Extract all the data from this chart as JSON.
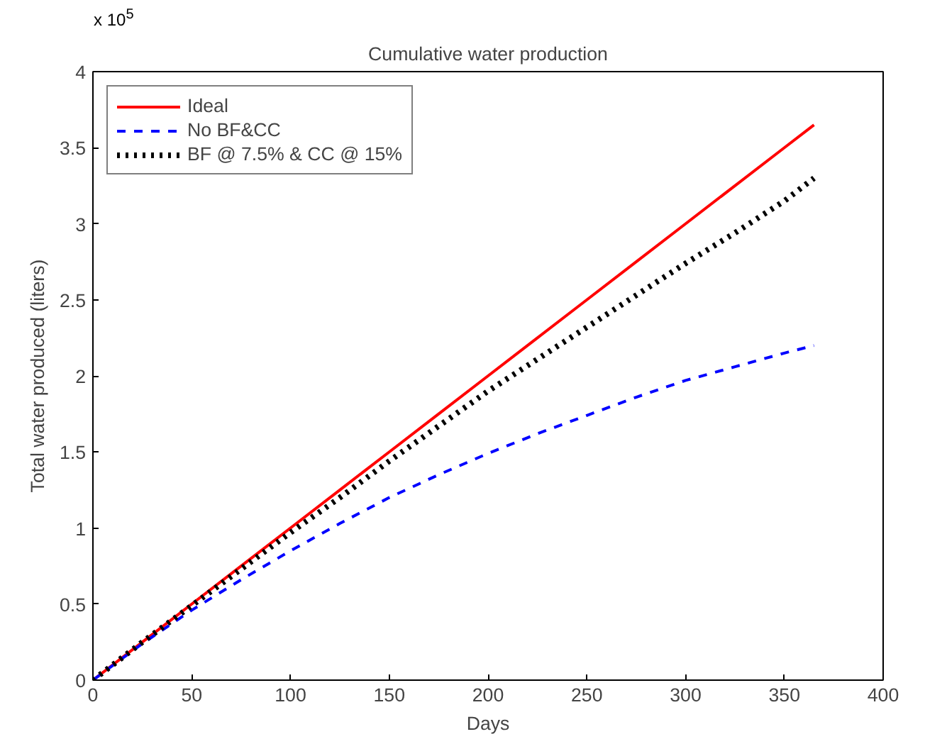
{
  "chart_data": {
    "type": "line",
    "title": "Cumulative water production",
    "xlabel": "Days",
    "ylabel": "Total water produced (liters)",
    "x": [
      0,
      25,
      50,
      75,
      100,
      125,
      150,
      175,
      200,
      225,
      250,
      275,
      300,
      325,
      350,
      365
    ],
    "series": [
      {
        "name": "Ideal",
        "color": "#ff0000",
        "line_style": "solid",
        "values": [
          0,
          0.25,
          0.5,
          0.75,
          1.0,
          1.25,
          1.5,
          1.75,
          2.0,
          2.25,
          2.5,
          2.75,
          3.0,
          3.25,
          3.5,
          3.65
        ]
      },
      {
        "name": "No BF&CC",
        "color": "#0000ff",
        "line_style": "dashed",
        "values": [
          0,
          0.24,
          0.46,
          0.66,
          0.85,
          1.03,
          1.2,
          1.35,
          1.49,
          1.62,
          1.74,
          1.86,
          1.97,
          2.06,
          2.15,
          2.2
        ]
      },
      {
        "name": "BF @ 7.5% & CC @ 15%",
        "color": "#000000",
        "line_style": "dotted",
        "values": [
          0,
          0.25,
          0.49,
          0.73,
          0.97,
          1.2,
          1.44,
          1.67,
          1.9,
          2.11,
          2.32,
          2.53,
          2.74,
          2.94,
          3.15,
          3.3
        ]
      }
    ],
    "xlim": [
      0,
      400
    ],
    "ylim": [
      0,
      4
    ],
    "xticks": [
      0,
      50,
      100,
      150,
      200,
      250,
      300,
      350,
      400
    ],
    "yticks": [
      0,
      0.5,
      1,
      1.5,
      2,
      2.5,
      3,
      3.5,
      4
    ],
    "annotations": [
      "x 10$^{5}$"
    ],
    "grid": false,
    "legend": "top left",
    "marker": "none"
  }
}
